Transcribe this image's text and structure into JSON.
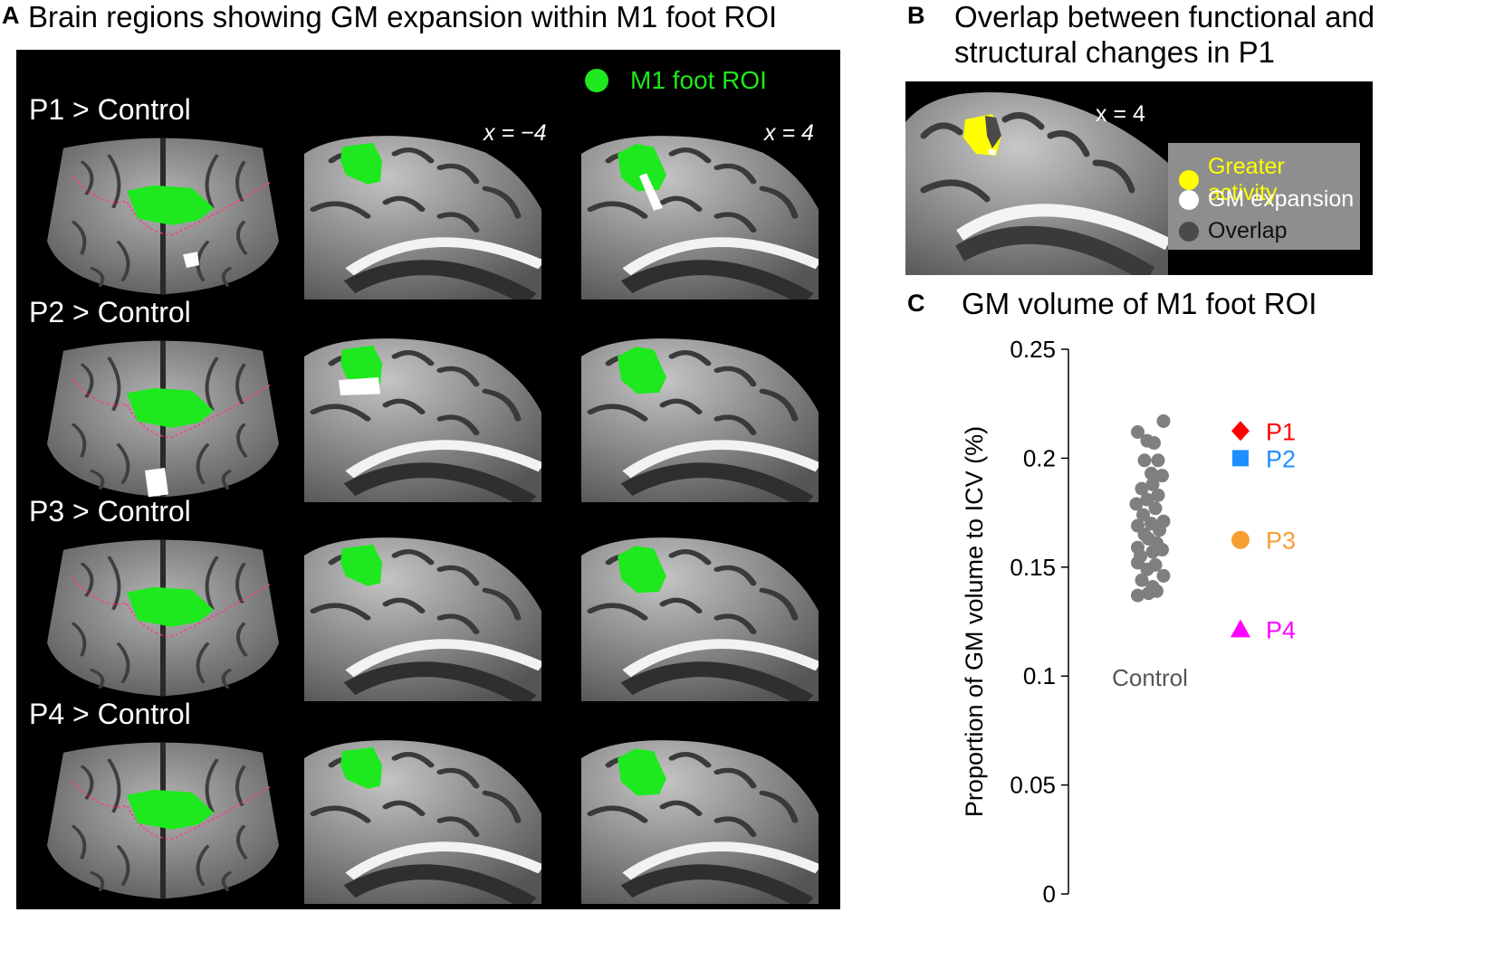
{
  "panelA": {
    "letter": "A",
    "title": "Brain regions showing GM expansion within M1 foot ROI",
    "legend_label": "M1 foot ROI",
    "coord_left": "x = −4",
    "coord_right": "x = 4",
    "rows": [
      {
        "label": "P1 > Control"
      },
      {
        "label": "P2 > Control"
      },
      {
        "label": "P3 > Control"
      },
      {
        "label": "P4 > Control"
      }
    ],
    "colors": {
      "roi": "#1ee81e",
      "expansion": "#ffffff",
      "background": "#000000"
    }
  },
  "panelB": {
    "letter": "B",
    "title_line1": "Overlap between functional and",
    "title_line2": "structural changes in P1",
    "coord": "x = 4",
    "legend": [
      {
        "label": "Greater activity",
        "color": "#ffff00"
      },
      {
        "label": "GM expansion",
        "color": "#ffffff"
      },
      {
        "label": "Overlap",
        "color": "#4a4a4a"
      }
    ]
  },
  "panelC": {
    "letter": "C",
    "title": "GM volume of M1 foot ROI"
  },
  "chart_data": {
    "type": "scatter",
    "title": "GM volume of M1 foot ROI",
    "ylabel": "Proportion of GM volume to ICV (%)",
    "ylim": [
      0,
      0.25
    ],
    "yticks": [
      "0",
      "0.05",
      "0.1",
      "0.15",
      "0.2",
      "0.25"
    ],
    "ytick_values": [
      0,
      0.05,
      0.1,
      0.15,
      0.2,
      0.25
    ],
    "grid": false,
    "category_label": "Control",
    "control_color": "#7f7f7f",
    "control_points": [
      {
        "j": 0.5,
        "y": 0.217
      },
      {
        "j": -0.45,
        "y": 0.212
      },
      {
        "j": -0.1,
        "y": 0.208
      },
      {
        "j": 0.15,
        "y": 0.207
      },
      {
        "j": -0.2,
        "y": 0.199
      },
      {
        "j": 0.3,
        "y": 0.199
      },
      {
        "j": 0.05,
        "y": 0.193
      },
      {
        "j": 0.45,
        "y": 0.192
      },
      {
        "j": 0.1,
        "y": 0.188
      },
      {
        "j": -0.3,
        "y": 0.186
      },
      {
        "j": 0.3,
        "y": 0.183
      },
      {
        "j": -0.1,
        "y": 0.181
      },
      {
        "j": -0.5,
        "y": 0.179
      },
      {
        "j": 0.2,
        "y": 0.177
      },
      {
        "j": -0.25,
        "y": 0.174
      },
      {
        "j": 0.5,
        "y": 0.171
      },
      {
        "j": -0.45,
        "y": 0.169
      },
      {
        "j": 0.05,
        "y": 0.17
      },
      {
        "j": 0.35,
        "y": 0.167
      },
      {
        "j": -0.2,
        "y": 0.165
      },
      {
        "j": -0.05,
        "y": 0.163
      },
      {
        "j": 0.25,
        "y": 0.161
      },
      {
        "j": -0.45,
        "y": 0.159
      },
      {
        "j": 0.45,
        "y": 0.158
      },
      {
        "j": 0.1,
        "y": 0.157
      },
      {
        "j": -0.35,
        "y": 0.155
      },
      {
        "j": -0.45,
        "y": 0.152
      },
      {
        "j": 0.2,
        "y": 0.151
      },
      {
        "j": -0.1,
        "y": 0.149
      },
      {
        "j": 0.5,
        "y": 0.146
      },
      {
        "j": -0.3,
        "y": 0.144
      },
      {
        "j": 0.1,
        "y": 0.141
      },
      {
        "j": 0.25,
        "y": 0.139
      },
      {
        "j": -0.05,
        "y": 0.138
      },
      {
        "j": -0.45,
        "y": 0.137
      }
    ],
    "patients": [
      {
        "name": "P1",
        "y": 0.2,
        "marker": "diamond",
        "color": "#ff0000"
      },
      {
        "name": "P2",
        "y": 0.2,
        "marker": "square",
        "color": "#1f8fff"
      },
      {
        "name": "P3",
        "y": 0.163,
        "marker": "circle",
        "color": "#f5a031"
      },
      {
        "name": "P4",
        "y": 0.12,
        "marker": "triangle",
        "color": "#ff00ff"
      }
    ],
    "patient_values_note": ""
  }
}
